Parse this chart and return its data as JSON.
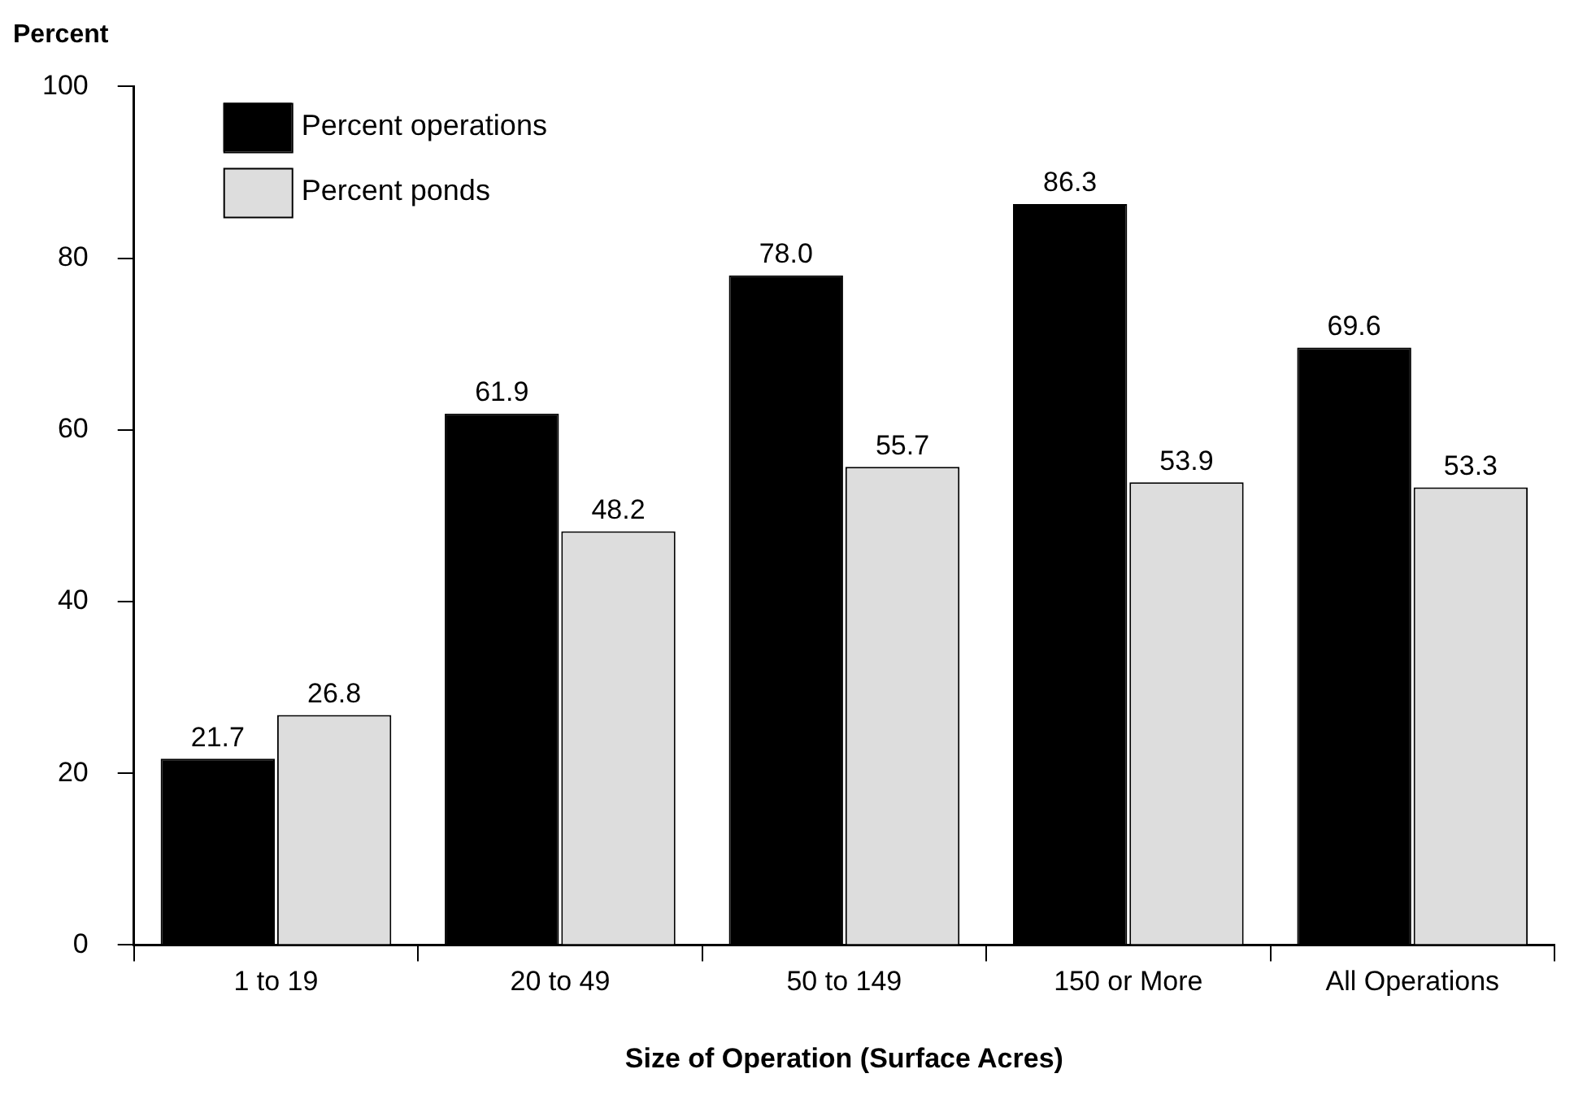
{
  "chart_data": {
    "type": "bar",
    "ylabel": "Percent",
    "xlabel": "Size of Operation (Surface Acres)",
    "categories": [
      "1 to 19",
      "20 to 49",
      "50 to 149",
      "150 or More",
      "All Operations"
    ],
    "series": [
      {
        "name": "Percent operations",
        "color": "#000000",
        "values": [
          21.7,
          61.9,
          78.0,
          86.3,
          69.6
        ],
        "value_labels": [
          "21.7",
          "61.9",
          "78.0",
          "86.3",
          "69.6"
        ]
      },
      {
        "name": "Percent ponds",
        "color": "#dddddd",
        "values": [
          26.8,
          48.2,
          55.7,
          53.9,
          53.3
        ],
        "value_labels": [
          "26.8",
          "48.2",
          "55.7",
          "53.9",
          "53.3"
        ]
      }
    ],
    "ylim": [
      0,
      100
    ],
    "yticks": [
      0,
      20,
      40,
      60,
      80,
      100
    ],
    "grid": false,
    "legend": "top left"
  }
}
